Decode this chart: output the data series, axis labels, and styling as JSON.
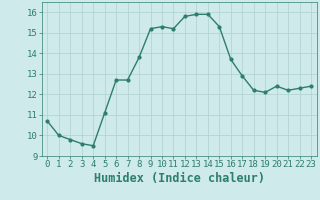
{
  "x": [
    0,
    1,
    2,
    3,
    4,
    5,
    6,
    7,
    8,
    9,
    10,
    11,
    12,
    13,
    14,
    15,
    16,
    17,
    18,
    19,
    20,
    21,
    22,
    23
  ],
  "y": [
    10.7,
    10.0,
    9.8,
    9.6,
    9.5,
    11.1,
    12.7,
    12.7,
    13.8,
    15.2,
    15.3,
    15.2,
    15.8,
    15.9,
    15.9,
    15.3,
    13.7,
    12.9,
    12.2,
    12.1,
    12.4,
    12.2,
    12.3,
    12.4
  ],
  "line_color": "#2e7d6e",
  "marker": "o",
  "marker_size": 2,
  "bg_color": "#ceeaea",
  "grid_color": "#afd0d0",
  "xlabel": "Humidex (Indice chaleur)",
  "xlim": [
    -0.5,
    23.5
  ],
  "ylim": [
    9,
    16.5
  ],
  "yticks": [
    9,
    10,
    11,
    12,
    13,
    14,
    15,
    16
  ],
  "xticks": [
    0,
    1,
    2,
    3,
    4,
    5,
    6,
    7,
    8,
    9,
    10,
    11,
    12,
    13,
    14,
    15,
    16,
    17,
    18,
    19,
    20,
    21,
    22,
    23
  ],
  "tick_fontsize": 6.5,
  "xlabel_fontsize": 8.5
}
